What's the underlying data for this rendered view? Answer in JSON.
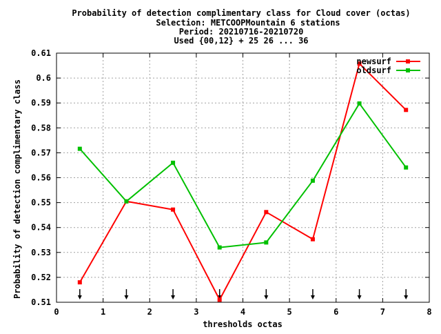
{
  "chart_data": {
    "type": "line",
    "title_lines": [
      "Probability of detection complimentary class  for Cloud cover (octas)",
      "Selection: METCOOPMountain      6 stations",
      "Period: 20210716-20210720",
      "Used {00,12} + 25 26 ... 36"
    ],
    "xlabel": "thresholds octas",
    "ylabel": "Probability of detection complimentary class",
    "xlim": [
      0,
      8
    ],
    "ylim": [
      0.51,
      0.61
    ],
    "x_ticks": [
      "0",
      "1",
      "2",
      "3",
      "4",
      "5",
      "6",
      "7",
      "8"
    ],
    "y_ticks": [
      "0.51",
      "0.52",
      "0.53",
      "0.54",
      "0.55",
      "0.56",
      "0.57",
      "0.58",
      "0.59",
      "0.6",
      "0.61"
    ],
    "x": [
      0.5,
      1.5,
      2.5,
      3.5,
      4.5,
      5.5,
      6.5,
      7.5
    ],
    "grid": true,
    "legend_position": "top-right",
    "series": [
      {
        "name": "newsurf",
        "color": "#ff0000",
        "values": [
          0.518,
          0.5505,
          0.5472,
          0.511,
          0.5462,
          0.5353,
          0.6058,
          0.5872
        ]
      },
      {
        "name": "oldsurf",
        "color": "#00c000",
        "values": [
          0.5716,
          0.5505,
          0.566,
          0.532,
          0.534,
          0.5588,
          0.5898,
          0.5641
        ]
      }
    ],
    "arrow_markers_x": [
      0.5,
      1.5,
      2.5,
      3.5,
      4.5,
      5.5,
      6.5,
      7.5
    ]
  }
}
